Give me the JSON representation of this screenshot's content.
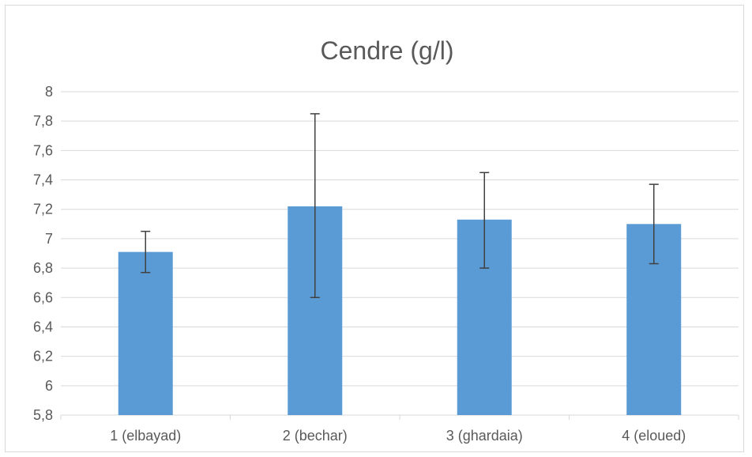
{
  "chart_data": {
    "type": "bar",
    "title": "Cendre (g/l)",
    "xlabel": "",
    "ylabel": "",
    "categories": [
      "1 (elbayad)",
      "2 (bechar)",
      "3 (ghardaia)",
      "4 (eloued)"
    ],
    "values": [
      6.91,
      7.22,
      7.13,
      7.1
    ],
    "error_low": [
      6.77,
      6.6,
      6.8,
      6.83
    ],
    "error_high": [
      7.05,
      7.85,
      7.45,
      7.37
    ],
    "ylim": [
      5.8,
      8
    ],
    "yticks": [
      "5,8",
      "6",
      "6,2",
      "6,4",
      "6,6",
      "6,8",
      "7",
      "7,2",
      "7,4",
      "7,6",
      "7,8",
      "8"
    ],
    "grid": true,
    "legend": "none",
    "colors": {
      "bar": "#5b9bd5",
      "grid": "#d9d9d9",
      "text": "#595959",
      "error_bar": "#404040"
    }
  }
}
